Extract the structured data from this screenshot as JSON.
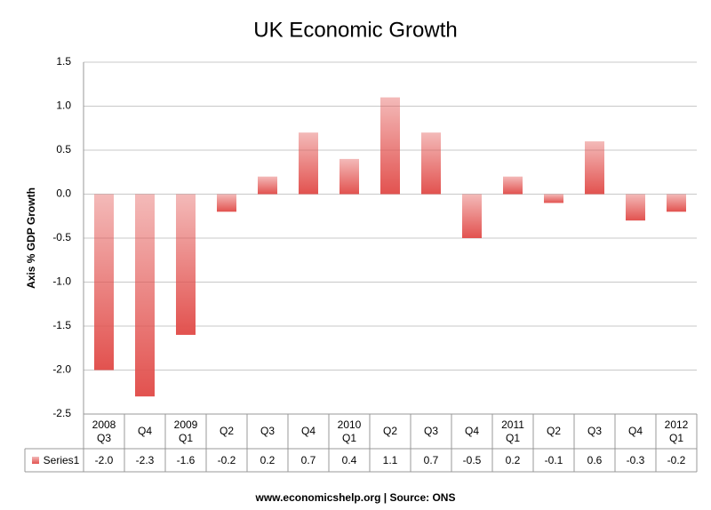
{
  "chart_data": {
    "type": "bar",
    "title": "UK Economic Growth",
    "y_label": "Axis % GDP Growth",
    "categories": [
      "2008\nQ3",
      "Q4",
      "2009\nQ1",
      "Q2",
      "Q3",
      "Q4",
      "2010\nQ1",
      "Q2",
      "Q3",
      "Q4",
      "2011\nQ1",
      "Q2",
      "Q3",
      "Q4",
      "2012\nQ1"
    ],
    "series": [
      {
        "name": "Series1",
        "color": "#e2524f",
        "values": [
          -2.0,
          -2.3,
          -1.6,
          -0.2,
          0.2,
          0.7,
          0.4,
          1.1,
          0.7,
          -0.5,
          0.2,
          -0.1,
          0.6,
          -0.3,
          -0.2
        ],
        "value_labels": [
          "-2.0",
          "-2.3",
          "-1.6",
          "-0.2",
          "0.2",
          "0.7",
          "0.4",
          "1.1",
          "0.7",
          "-0.5",
          "0.2",
          "-0.1",
          "0.6",
          "-0.3",
          "-0.2"
        ]
      }
    ],
    "ylim": [
      -2.5,
      1.5
    ],
    "yticks": [
      -2.5,
      {
        "value": -2,
        "label": "-2.0"
      },
      -1.5,
      {
        "value": -1,
        "label": "-1.0"
      },
      -0.5,
      {
        "value": 0,
        "label": "0.0"
      },
      0.5,
      {
        "value": 1,
        "label": "1.0"
      },
      1.5
    ],
    "grid": true,
    "footer": "www.economicshelp.org | Source: ONS"
  }
}
